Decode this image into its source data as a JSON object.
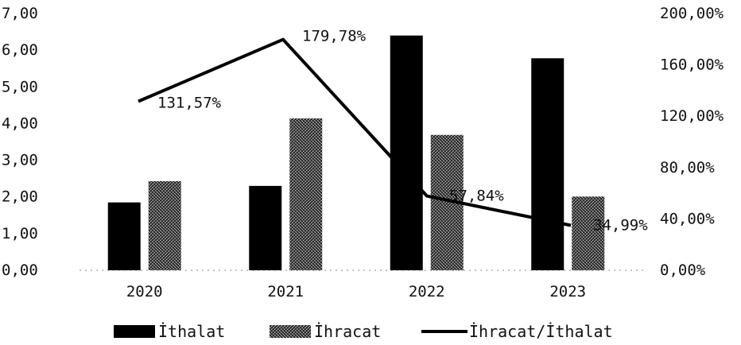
{
  "chart_data": {
    "type": "bar",
    "categories": [
      "2020",
      "2021",
      "2022",
      "2023"
    ],
    "series": [
      {
        "name": "İthalat",
        "type": "bar",
        "axis": "left",
        "values": [
          1.85,
          2.3,
          6.4,
          5.78
        ],
        "color": "#000000"
      },
      {
        "name": "İhracat",
        "type": "bar",
        "axis": "left",
        "values": [
          2.43,
          4.14,
          3.69,
          2.01
        ],
        "color": "#4a4a4a",
        "pattern": "speckle"
      },
      {
        "name": "İhracat/İthalat",
        "type": "line",
        "axis": "right",
        "values": [
          131.57,
          179.78,
          57.84,
          34.99
        ],
        "color": "#000000"
      }
    ],
    "data_labels": [
      "131,57%",
      "179,78%",
      "57,84%",
      "34,99%"
    ],
    "left_axis": {
      "min": 0,
      "max": 7,
      "step": 1,
      "tick_labels": [
        "0,00",
        "1,00",
        "2,00",
        "3,00",
        "4,00",
        "5,00",
        "6,00",
        "7,00"
      ]
    },
    "right_axis": {
      "min": 0,
      "max": 200,
      "step": 40,
      "tick_labels": [
        "0,00%",
        "40,00%",
        "80,00%",
        "120,00%",
        "160,00%",
        "200,00%"
      ]
    },
    "title": "",
    "xlabel": "",
    "ylabel": "",
    "grid": false,
    "legend_position": "bottom-center"
  }
}
